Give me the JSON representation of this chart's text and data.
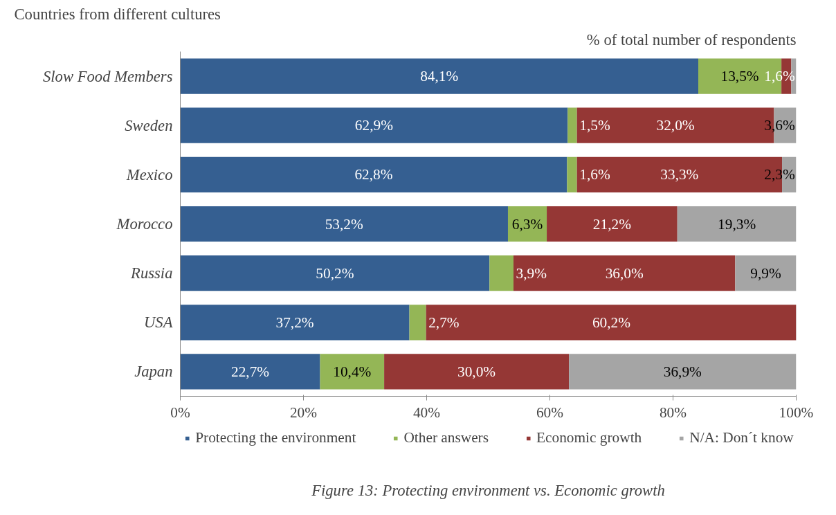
{
  "chart_data": {
    "type": "bar",
    "orientation": "horizontal",
    "stacked": true,
    "title": "Countries from different cultures",
    "xlabel": "% of total number of respondents",
    "categories": [
      "Slow Food Members",
      "Sweden",
      "Mexico",
      "Morocco",
      "Russia",
      "USA",
      "Japan"
    ],
    "series": [
      {
        "name": "Protecting the environment",
        "color": "#355f91",
        "values": [
          84.1,
          62.9,
          62.8,
          53.2,
          50.2,
          37.2,
          22.7
        ],
        "value_labels": [
          "84,1%",
          "62,9%",
          "62,8%",
          "53,2%",
          "50,2%",
          "37,2%",
          "22,7%"
        ]
      },
      {
        "name": "Other answers",
        "color": "#94b656",
        "values": [
          13.5,
          1.5,
          1.6,
          6.3,
          3.9,
          2.7,
          10.4
        ],
        "value_labels": [
          "13,5%",
          "1,5%",
          "1,6%",
          "6,3%",
          "3,9%",
          "2,7%",
          "10,4%"
        ]
      },
      {
        "name": "Economic growth",
        "color": "#953735",
        "values": [
          1.6,
          32.0,
          33.3,
          21.2,
          36.0,
          60.2,
          30.0
        ],
        "value_labels": [
          "1,6%",
          "32,0%",
          "33,3%",
          "21,2%",
          "36,0%",
          "60,2%",
          "30,0%"
        ]
      },
      {
        "name": "N/A: Don´t know",
        "color": "#a5a5a5",
        "values": [
          0.8,
          3.6,
          2.3,
          19.3,
          9.9,
          0,
          36.9
        ],
        "value_labels": [
          null,
          "3,6%",
          "2,3%",
          "19,3%",
          "9,9%",
          null,
          "36,9%"
        ]
      }
    ],
    "xlim": [
      0,
      100
    ],
    "xticks": [
      {
        "value": 0,
        "label": "0%"
      },
      {
        "value": 20,
        "label": "20%"
      },
      {
        "value": 40,
        "label": "40%"
      },
      {
        "value": 60,
        "label": "60%"
      },
      {
        "value": 80,
        "label": "80%"
      },
      {
        "value": 100,
        "label": "100%"
      }
    ],
    "grid": false,
    "legend": "bottom",
    "annotations": [
      "Figure 13: Protecting environment vs. Economic growth"
    ]
  }
}
